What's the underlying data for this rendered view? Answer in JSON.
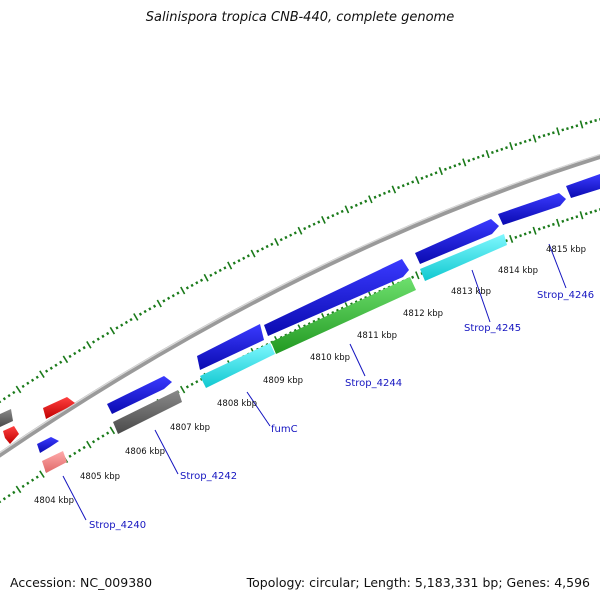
{
  "header": {
    "title": "Salinispora tropica CNB-440, complete genome"
  },
  "footer": {
    "accession": "Accession: NC_009380",
    "summary": "Topology: circular; Length: 5,183,331 bp; Genes: 4,596"
  },
  "map": {
    "kbp_labels": [
      "4804 kbp",
      "4805 kbp",
      "4806 kbp",
      "4807 kbp",
      "4808 kbp",
      "4809 kbp",
      "4810 kbp",
      "4811 kbp",
      "4812 kbp",
      "4813 kbp",
      "4814 kbp",
      "4815 kbp"
    ],
    "gene_labels": [
      "Strop_4240",
      "Strop_4242",
      "fumC",
      "Strop_4244",
      "Strop_4245",
      "Strop_4246"
    ],
    "colors": {
      "backbone": "#9a9a9a",
      "tick": "#1a7a1a",
      "forward_cds": "#1515d8",
      "reverse_cds": "#18e0e8",
      "highlight_cds": "#33bb33",
      "pseudo": "#666666",
      "rna": "#e01010",
      "light_rna": "#f08080",
      "label": "#1515c0"
    }
  }
}
